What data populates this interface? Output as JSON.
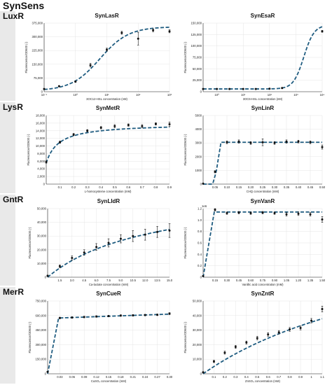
{
  "title": "SynSens",
  "rows": [
    {
      "label": "LuxR"
    },
    {
      "label": "LysR"
    },
    {
      "label": "GntR"
    },
    {
      "label": "MerR"
    }
  ],
  "chart_data": [
    {
      "type": "scatter",
      "title": "SynLasR",
      "xlabel": "3OC12-HSL concentration (nM)",
      "ylabel": "Fluorescence/OD600 (-)",
      "xscale": "log",
      "xlim": [
        0.1,
        1000
      ],
      "ylim": [
        0,
        375000
      ],
      "xticks": [
        0.1,
        1,
        10,
        100,
        1000
      ],
      "xtick_labels": [
        "10⁻¹",
        "10⁰",
        "10¹",
        "10²",
        "10³"
      ],
      "yticks": [
        0,
        75000,
        150000,
        225000,
        300000,
        375000
      ],
      "ytick_labels": [
        "0",
        "75,000",
        "150,000",
        "225,000",
        "300,000",
        "375,000"
      ],
      "grid": true,
      "points": [
        {
          "x": 0.1,
          "y": 15000,
          "err": 2000
        },
        {
          "x": 0.3,
          "y": 30000,
          "err": 3000
        },
        {
          "x": 1,
          "y": 55000,
          "err": 4000
        },
        {
          "x": 3,
          "y": 145000,
          "err": 10000
        },
        {
          "x": 10,
          "y": 230000,
          "err": 8000
        },
        {
          "x": 30,
          "y": 322000,
          "err": 8000
        },
        {
          "x": 100,
          "y": 290000,
          "err": 35000
        },
        {
          "x": 300,
          "y": 336000,
          "err": 8000
        },
        {
          "x": 1000,
          "y": 330000,
          "err": 8000
        }
      ],
      "fit": {
        "model": "hill",
        "base": 5000,
        "top": 350000,
        "k": 6,
        "n": 0.95
      }
    },
    {
      "type": "scatter",
      "title": "SynEsaR",
      "xlabel": "3OC6-HSL concentration (nM)",
      "ylabel": "Fluorescence/OD600 (-)",
      "xscale": "log",
      "xlim": [
        0.3,
        10000
      ],
      "ylim": [
        0,
        150000
      ],
      "xticks": [
        1,
        10,
        100,
        1000,
        10000
      ],
      "xtick_labels": [
        "10⁰",
        "10¹",
        "10²",
        "10³",
        "10⁴"
      ],
      "yticks": [
        0,
        25000,
        50000,
        75000,
        100000,
        125000,
        150000
      ],
      "ytick_labels": [
        "0",
        "25,000",
        "50,000",
        "75,000",
        "100,000",
        "125,000",
        "150,000"
      ],
      "grid": true,
      "points": [
        {
          "x": 0.3,
          "y": 6000,
          "err": 1000
        },
        {
          "x": 1,
          "y": 6000,
          "err": 1000
        },
        {
          "x": 3,
          "y": 6000,
          "err": 1000
        },
        {
          "x": 10,
          "y": 6000,
          "err": 1000
        },
        {
          "x": 30,
          "y": 6000,
          "err": 1000
        },
        {
          "x": 100,
          "y": 6500,
          "err": 1000
        },
        {
          "x": 300,
          "y": 8000,
          "err": 1500
        },
        {
          "x": 10000,
          "y": 132000,
          "err": 2000
        }
      ],
      "fit": {
        "model": "hill",
        "base": 6000,
        "top": 140000,
        "k": 2000,
        "n": 2.2
      }
    },
    {
      "type": "scatter",
      "title": "SynMetR",
      "xlabel": "L-homocysteine concentration (mM)",
      "ylabel": "Fluorescence/OD600 (-)",
      "xscale": "linear",
      "xlim": [
        0,
        0.9
      ],
      "ylim": [
        0,
        18000
      ],
      "xticks": [
        0.1,
        0.2,
        0.3,
        0.4,
        0.5,
        0.6,
        0.7,
        0.8,
        0.9
      ],
      "xtick_labels": [
        "0.1",
        "0.2",
        "0.3",
        "0.4",
        "0.5",
        "0.6",
        "0.7",
        "0.8",
        "0.9"
      ],
      "yticks": [
        0,
        2000,
        4000,
        6000,
        8000,
        10000,
        12000,
        14000,
        16000,
        18000
      ],
      "ytick_labels": [
        "0",
        "2,000",
        "4,000",
        "6,000",
        "8,000",
        "10,000",
        "12,000",
        "14,000",
        "16,000",
        "18,000"
      ],
      "grid": true,
      "points": [
        {
          "x": 0,
          "y": 5800,
          "err": 300
        },
        {
          "x": 0.1,
          "y": 11000,
          "err": 300
        },
        {
          "x": 0.2,
          "y": 13000,
          "err": 300
        },
        {
          "x": 0.3,
          "y": 14000,
          "err": 300
        },
        {
          "x": 0.4,
          "y": 14800,
          "err": 300
        },
        {
          "x": 0.5,
          "y": 15200,
          "err": 400
        },
        {
          "x": 0.6,
          "y": 15500,
          "err": 300
        },
        {
          "x": 0.7,
          "y": 15200,
          "err": 400
        },
        {
          "x": 0.8,
          "y": 15800,
          "err": 300
        },
        {
          "x": 0.9,
          "y": 15700,
          "err": 600
        }
      ],
      "fit": {
        "model": "sat",
        "base": 5500,
        "top": 10400,
        "k": 0.09,
        "n": 1
      }
    },
    {
      "type": "scatter",
      "title": "SynLinR",
      "xlabel": "CHQ concentration (mM)",
      "ylabel": "Fluorescence/OD600 (-)",
      "xscale": "linear",
      "xlim": [
        0,
        0.5
      ],
      "ylim": [
        0,
        5000
      ],
      "xticks": [
        0.05,
        0.1,
        0.15,
        0.2,
        0.25,
        0.3,
        0.35,
        0.4,
        0.45,
        0.5
      ],
      "xtick_labels": [
        "0.05",
        "0.10",
        "0.15",
        "0.20",
        "0.25",
        "0.30",
        "0.35",
        "0.40",
        "0.45",
        "0.50"
      ],
      "yticks": [
        0,
        1000,
        2000,
        3000,
        4000,
        5000
      ],
      "ytick_labels": [
        "0",
        "1000",
        "2000",
        "3000",
        "4000",
        "5000"
      ],
      "grid": true,
      "points": [
        {
          "x": 0,
          "y": 30,
          "err": 20
        },
        {
          "x": 0.05,
          "y": 900,
          "err": 80
        },
        {
          "x": 0.1,
          "y": 3050,
          "err": 100
        },
        {
          "x": 0.15,
          "y": 3100,
          "err": 120
        },
        {
          "x": 0.2,
          "y": 3000,
          "err": 100
        },
        {
          "x": 0.25,
          "y": 3050,
          "err": 250
        },
        {
          "x": 0.3,
          "y": 3000,
          "err": 100
        },
        {
          "x": 0.35,
          "y": 3100,
          "err": 120
        },
        {
          "x": 0.4,
          "y": 3100,
          "err": 100
        },
        {
          "x": 0.45,
          "y": 3050,
          "err": 100
        },
        {
          "x": 0.5,
          "y": 2700,
          "err": 150
        }
      ],
      "fit": {
        "model": "poly",
        "pts": [
          [
            0,
            0
          ],
          [
            0.04,
            0
          ],
          [
            0.055,
            900
          ],
          [
            0.075,
            3050
          ],
          [
            0.5,
            3050
          ]
        ]
      }
    },
    {
      "type": "scatter",
      "title": "SynLldR",
      "xlabel": "Ca-lactate concentration (mM)",
      "ylabel": "Fluorescence/OD600 (-)",
      "xscale": "linear",
      "xlim": [
        0,
        15
      ],
      "ylim": [
        0,
        50000
      ],
      "xticks": [
        1.5,
        3,
        4.5,
        6,
        7.5,
        9,
        10.5,
        12,
        13.5,
        15
      ],
      "xtick_labels": [
        "1.5",
        "3.0",
        "4.5",
        "6.0",
        "7.5",
        "9.0",
        "10.5",
        "12.0",
        "13.5",
        "15.0"
      ],
      "yticks": [
        0,
        10000,
        20000,
        30000,
        40000,
        50000
      ],
      "ytick_labels": [
        "0",
        "10,000",
        "20,000",
        "30,000",
        "40,000",
        "50,000"
      ],
      "grid": true,
      "points": [
        {
          "x": 0,
          "y": 1000,
          "err": 500
        },
        {
          "x": 1.5,
          "y": 8000,
          "err": 1000
        },
        {
          "x": 3,
          "y": 14000,
          "err": 1500
        },
        {
          "x": 4.5,
          "y": 18000,
          "err": 2000
        },
        {
          "x": 6,
          "y": 22000,
          "err": 2500
        },
        {
          "x": 7.5,
          "y": 25000,
          "err": 3000
        },
        {
          "x": 9,
          "y": 28000,
          "err": 3000
        },
        {
          "x": 10.5,
          "y": 30000,
          "err": 4000
        },
        {
          "x": 12,
          "y": 31000,
          "err": 4000
        },
        {
          "x": 13.5,
          "y": 33000,
          "err": 4000
        },
        {
          "x": 15,
          "y": 34000,
          "err": 5000
        }
      ],
      "fit": {
        "model": "sat",
        "base": 0,
        "top": 65000,
        "k": 13,
        "n": 1
      }
    },
    {
      "type": "scatter",
      "title": "SynVanR",
      "xlabel": "Vanillic acid concentration (mM)",
      "ylabel": "Fluorescence/OD600 (-)",
      "axis_multiplier": "1e6",
      "xscale": "linear",
      "xlim": [
        0,
        1.5
      ],
      "ylim": [
        0,
        1.2
      ],
      "xticks": [
        0.15,
        0.3,
        0.45,
        0.6,
        0.75,
        0.9,
        1.05,
        1.2,
        1.35,
        1.5
      ],
      "xtick_labels": [
        "0.15",
        "0.30",
        "0.45",
        "0.60",
        "0.75",
        "0.90",
        "1.05",
        "1.20",
        "1.35",
        "1.50"
      ],
      "yticks": [
        0,
        0.2,
        0.4,
        0.6,
        0.8,
        1.0,
        1.2
      ],
      "ytick_labels": [
        "0",
        "0.2",
        "0.4",
        "0.6",
        "0.8",
        "1.0",
        "1.2"
      ],
      "grid": true,
      "points": [
        {
          "x": 0,
          "y": 0.02,
          "err": 0.01
        },
        {
          "x": 0.15,
          "y": 1.18,
          "err": 0.02
        },
        {
          "x": 0.3,
          "y": 1.12,
          "err": 0.02
        },
        {
          "x": 0.45,
          "y": 1.13,
          "err": 0.02
        },
        {
          "x": 0.6,
          "y": 1.12,
          "err": 0.02
        },
        {
          "x": 0.75,
          "y": 1.13,
          "err": 0.02
        },
        {
          "x": 0.9,
          "y": 1.12,
          "err": 0.02
        },
        {
          "x": 1.05,
          "y": 1.1,
          "err": 0.03
        },
        {
          "x": 1.2,
          "y": 1.11,
          "err": 0.03
        },
        {
          "x": 1.35,
          "y": 1.1,
          "err": 0.03
        },
        {
          "x": 1.5,
          "y": 1.01,
          "err": 0.05
        }
      ],
      "fit": {
        "model": "poly",
        "pts": [
          [
            0,
            0
          ],
          [
            0.14,
            1.14
          ],
          [
            1.5,
            1.14
          ]
        ]
      }
    },
    {
      "type": "scatter",
      "title": "SynCueR",
      "xlabel": "CuSO₄ concentration (mM)",
      "ylabel": "Fluorescence/OD600 (-)",
      "xscale": "linear",
      "xlim": [
        0,
        0.3
      ],
      "ylim": [
        0,
        750000
      ],
      "xticks": [
        0.03,
        0.06,
        0.09,
        0.12,
        0.15,
        0.18,
        0.21,
        0.24,
        0.27,
        0.3
      ],
      "xtick_labels": [
        "0.03",
        "0.06",
        "0.09",
        "0.12",
        "0.15",
        "0.18",
        "0.21",
        "0.24",
        "0.27",
        "0.30"
      ],
      "yticks": [
        0,
        150000,
        300000,
        450000,
        600000,
        750000
      ],
      "ytick_labels": [
        "0",
        "150,000",
        "300,000",
        "450,000",
        "600,000",
        "750,000"
      ],
      "grid": true,
      "points": [
        {
          "x": 0,
          "y": 20000,
          "err": 5000
        },
        {
          "x": 0.03,
          "y": 575000,
          "err": 8000
        },
        {
          "x": 0.06,
          "y": 580000,
          "err": 8000
        },
        {
          "x": 0.09,
          "y": 585000,
          "err": 8000
        },
        {
          "x": 0.12,
          "y": 590000,
          "err": 8000
        },
        {
          "x": 0.15,
          "y": 595000,
          "err": 8000
        },
        {
          "x": 0.18,
          "y": 600000,
          "err": 8000
        },
        {
          "x": 0.21,
          "y": 602000,
          "err": 8000
        },
        {
          "x": 0.24,
          "y": 605000,
          "err": 8000
        },
        {
          "x": 0.27,
          "y": 608000,
          "err": 8000
        },
        {
          "x": 0.3,
          "y": 620000,
          "err": 10000
        }
      ],
      "fit": {
        "model": "poly",
        "pts": [
          [
            0,
            0
          ],
          [
            0.027,
            575000
          ],
          [
            0.3,
            615000
          ]
        ]
      }
    },
    {
      "type": "scatter",
      "title": "SynZntR",
      "xlabel": "ZnSO₄ concentration (mM)",
      "ylabel": "Fluorescence/OD600 (-)",
      "xscale": "linear",
      "xlim": [
        0,
        1.1
      ],
      "ylim": [
        0,
        50000
      ],
      "xticks": [
        0.1,
        0.2,
        0.3,
        0.4,
        0.5,
        0.6,
        0.7,
        0.8,
        0.9,
        1,
        1.1
      ],
      "xtick_labels": [
        "0.1",
        "0.2",
        "0.3",
        "0.4",
        "0.5",
        "0.6",
        "0.7",
        "0.8",
        "0.9",
        "1",
        "1.1"
      ],
      "yticks": [
        0,
        10000,
        20000,
        30000,
        40000,
        50000
      ],
      "ytick_labels": [
        "0",
        "10,000",
        "20,000",
        "30,000",
        "40,000",
        "50,000"
      ],
      "grid": true,
      "points": [
        {
          "x": 0,
          "y": 1000,
          "err": 500
        },
        {
          "x": 0.1,
          "y": 8500,
          "err": 800
        },
        {
          "x": 0.2,
          "y": 14500,
          "err": 1000
        },
        {
          "x": 0.3,
          "y": 18500,
          "err": 1000
        },
        {
          "x": 0.4,
          "y": 21500,
          "err": 1000
        },
        {
          "x": 0.5,
          "y": 24500,
          "err": 1200
        },
        {
          "x": 0.6,
          "y": 27000,
          "err": 1200
        },
        {
          "x": 0.7,
          "y": 28500,
          "err": 1200
        },
        {
          "x": 0.8,
          "y": 30500,
          "err": 1300
        },
        {
          "x": 0.9,
          "y": 31500,
          "err": 1300
        },
        {
          "x": 1,
          "y": 36500,
          "err": 1500
        },
        {
          "x": 1.1,
          "y": 44500,
          "err": 2000
        }
      ],
      "fit": {
        "model": "sat",
        "base": 0,
        "top": 110000,
        "k": 2.1,
        "n": 1
      }
    }
  ]
}
